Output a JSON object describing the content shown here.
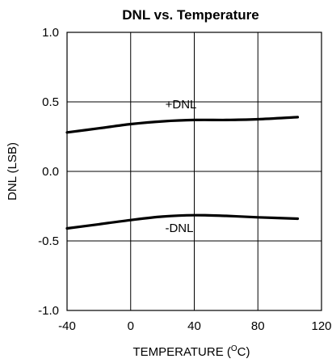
{
  "chart_data": {
    "type": "line",
    "title": "DNL vs. Temperature",
    "xlabel": "TEMPERATURE (",
    "xlabel_unit_sup": "O",
    "xlabel_unit_rest": "C)",
    "ylabel": "DNL (LSB)",
    "xlim": [
      -40,
      120
    ],
    "ylim": [
      -1.0,
      1.0
    ],
    "x_ticks": [
      -40,
      0,
      40,
      80,
      120
    ],
    "x_tick_labels": [
      "-40",
      "0",
      "40",
      "80",
      "120"
    ],
    "y_ticks": [
      1.0,
      0.5,
      0.0,
      -0.5,
      -1.0
    ],
    "y_tick_labels": [
      "1.0",
      "0.5",
      "0.0",
      "-0.5",
      "-1.0"
    ],
    "grid": true,
    "series": [
      {
        "name": "+DNL",
        "x": [
          -40,
          -20,
          0,
          20,
          40,
          60,
          80,
          105
        ],
        "y": [
          0.28,
          0.31,
          0.34,
          0.36,
          0.37,
          0.37,
          0.375,
          0.39
        ]
      },
      {
        "name": "-DNL",
        "x": [
          -40,
          -20,
          0,
          20,
          40,
          60,
          80,
          105
        ],
        "y": [
          -0.41,
          -0.38,
          -0.35,
          -0.325,
          -0.315,
          -0.32,
          -0.33,
          -0.34
        ]
      }
    ]
  }
}
